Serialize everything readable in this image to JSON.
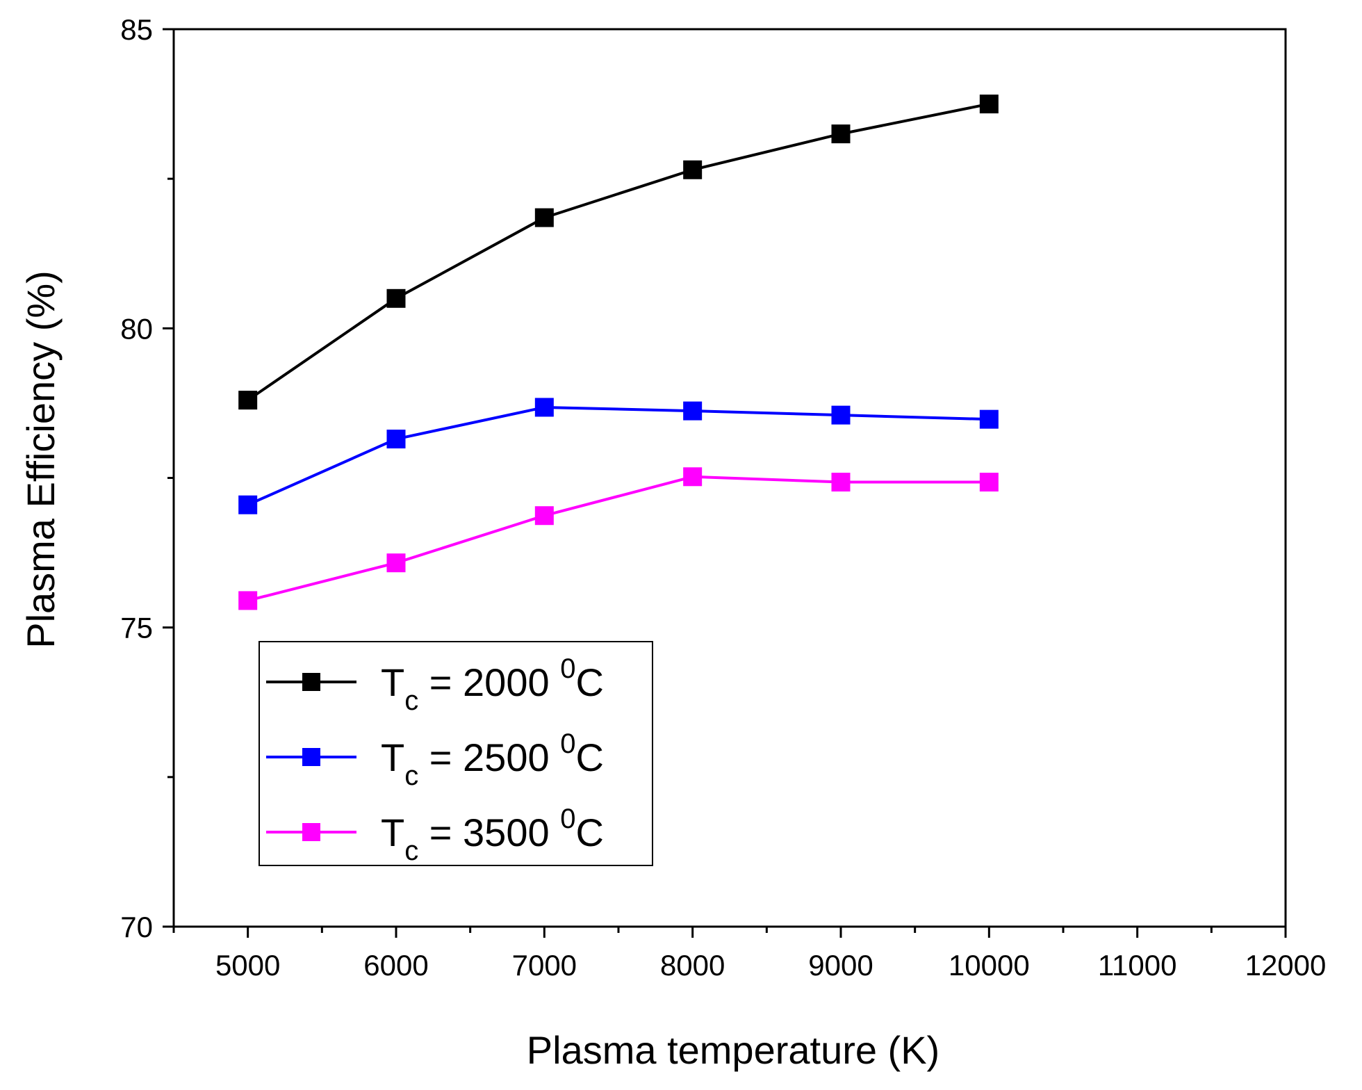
{
  "chart_data": {
    "type": "line",
    "title": "",
    "xlabel": "Plasma temperature (K)",
    "ylabel": "Plasma Efficiency (%)",
    "xlim": [
      4500,
      12000
    ],
    "ylim": [
      70,
      85
    ],
    "x_ticks": [
      5000,
      6000,
      7000,
      8000,
      9000,
      10000,
      11000,
      12000
    ],
    "y_ticks": [
      70,
      75,
      80,
      85
    ],
    "x": [
      5000,
      6000,
      7000,
      8000,
      9000,
      10000
    ],
    "legend_position": "lower-left",
    "series": [
      {
        "name": "T_c = 2000 °C",
        "label": {
          "main": "T",
          "sub": "c",
          "mid": " = 2000 ",
          "sup": "0",
          "unit": "C"
        },
        "color": "#000000",
        "values": [
          78.8,
          80.5,
          81.85,
          82.65,
          83.25,
          83.75
        ]
      },
      {
        "name": "T_c = 2500 °C",
        "label": {
          "main": "T",
          "sub": "c",
          "mid": " = 2500 ",
          "sup": "0",
          "unit": "C"
        },
        "color": "#0000ff",
        "values": [
          77.05,
          78.15,
          78.68,
          78.62,
          78.55,
          78.48
        ]
      },
      {
        "name": "T_c = 3500 °C",
        "label": {
          "main": "T",
          "sub": "c",
          "mid": " = 3500 ",
          "sup": "0",
          "unit": "C"
        },
        "color": "#ff00ff",
        "values": [
          75.45,
          76.08,
          76.87,
          77.52,
          77.43,
          77.43
        ]
      }
    ]
  }
}
